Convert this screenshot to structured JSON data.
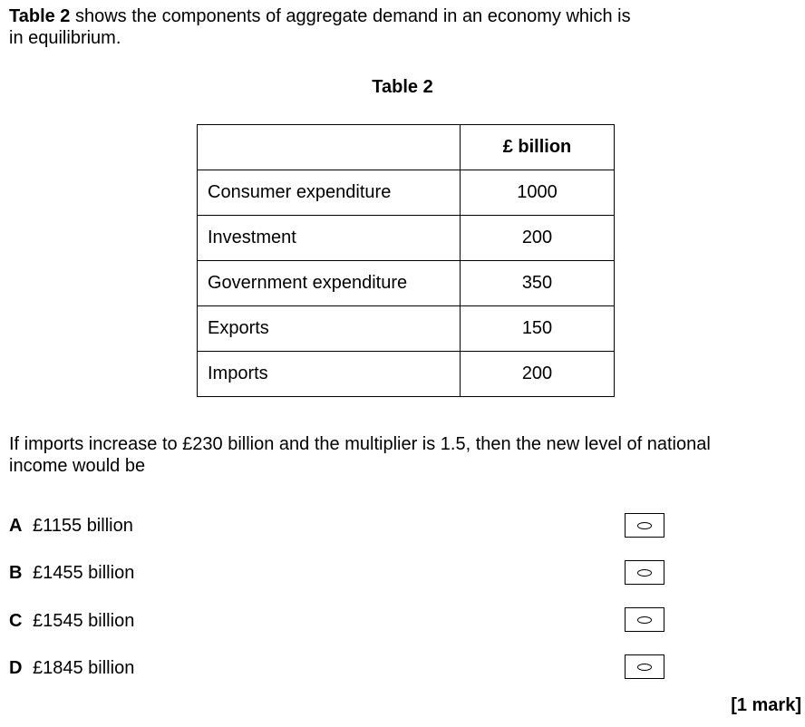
{
  "intro": {
    "table_ref": "Table 2",
    "line1_rest": " shows the components of aggregate demand in an economy which is",
    "line2": "in equilibrium."
  },
  "table": {
    "caption": "Table 2",
    "header": {
      "label": "",
      "value": "£ billion"
    },
    "rows": [
      {
        "label": "Consumer expenditure",
        "value": "1000"
      },
      {
        "label": "Investment",
        "value": "200"
      },
      {
        "label": "Government expenditure",
        "value": "350"
      },
      {
        "label": "Exports",
        "value": "150"
      },
      {
        "label": "Imports",
        "value": "200"
      }
    ]
  },
  "question": {
    "line1": "If imports increase to £230 billion and the multiplier is 1.5, then the new level of national",
    "line2": "income would be"
  },
  "options": [
    {
      "letter": "A",
      "text": "£1155 billion"
    },
    {
      "letter": "B",
      "text": "£1455 billion"
    },
    {
      "letter": "C",
      "text": "£1545 billion"
    },
    {
      "letter": "D",
      "text": "£1845 billion"
    }
  ],
  "marks": "[1 mark]"
}
